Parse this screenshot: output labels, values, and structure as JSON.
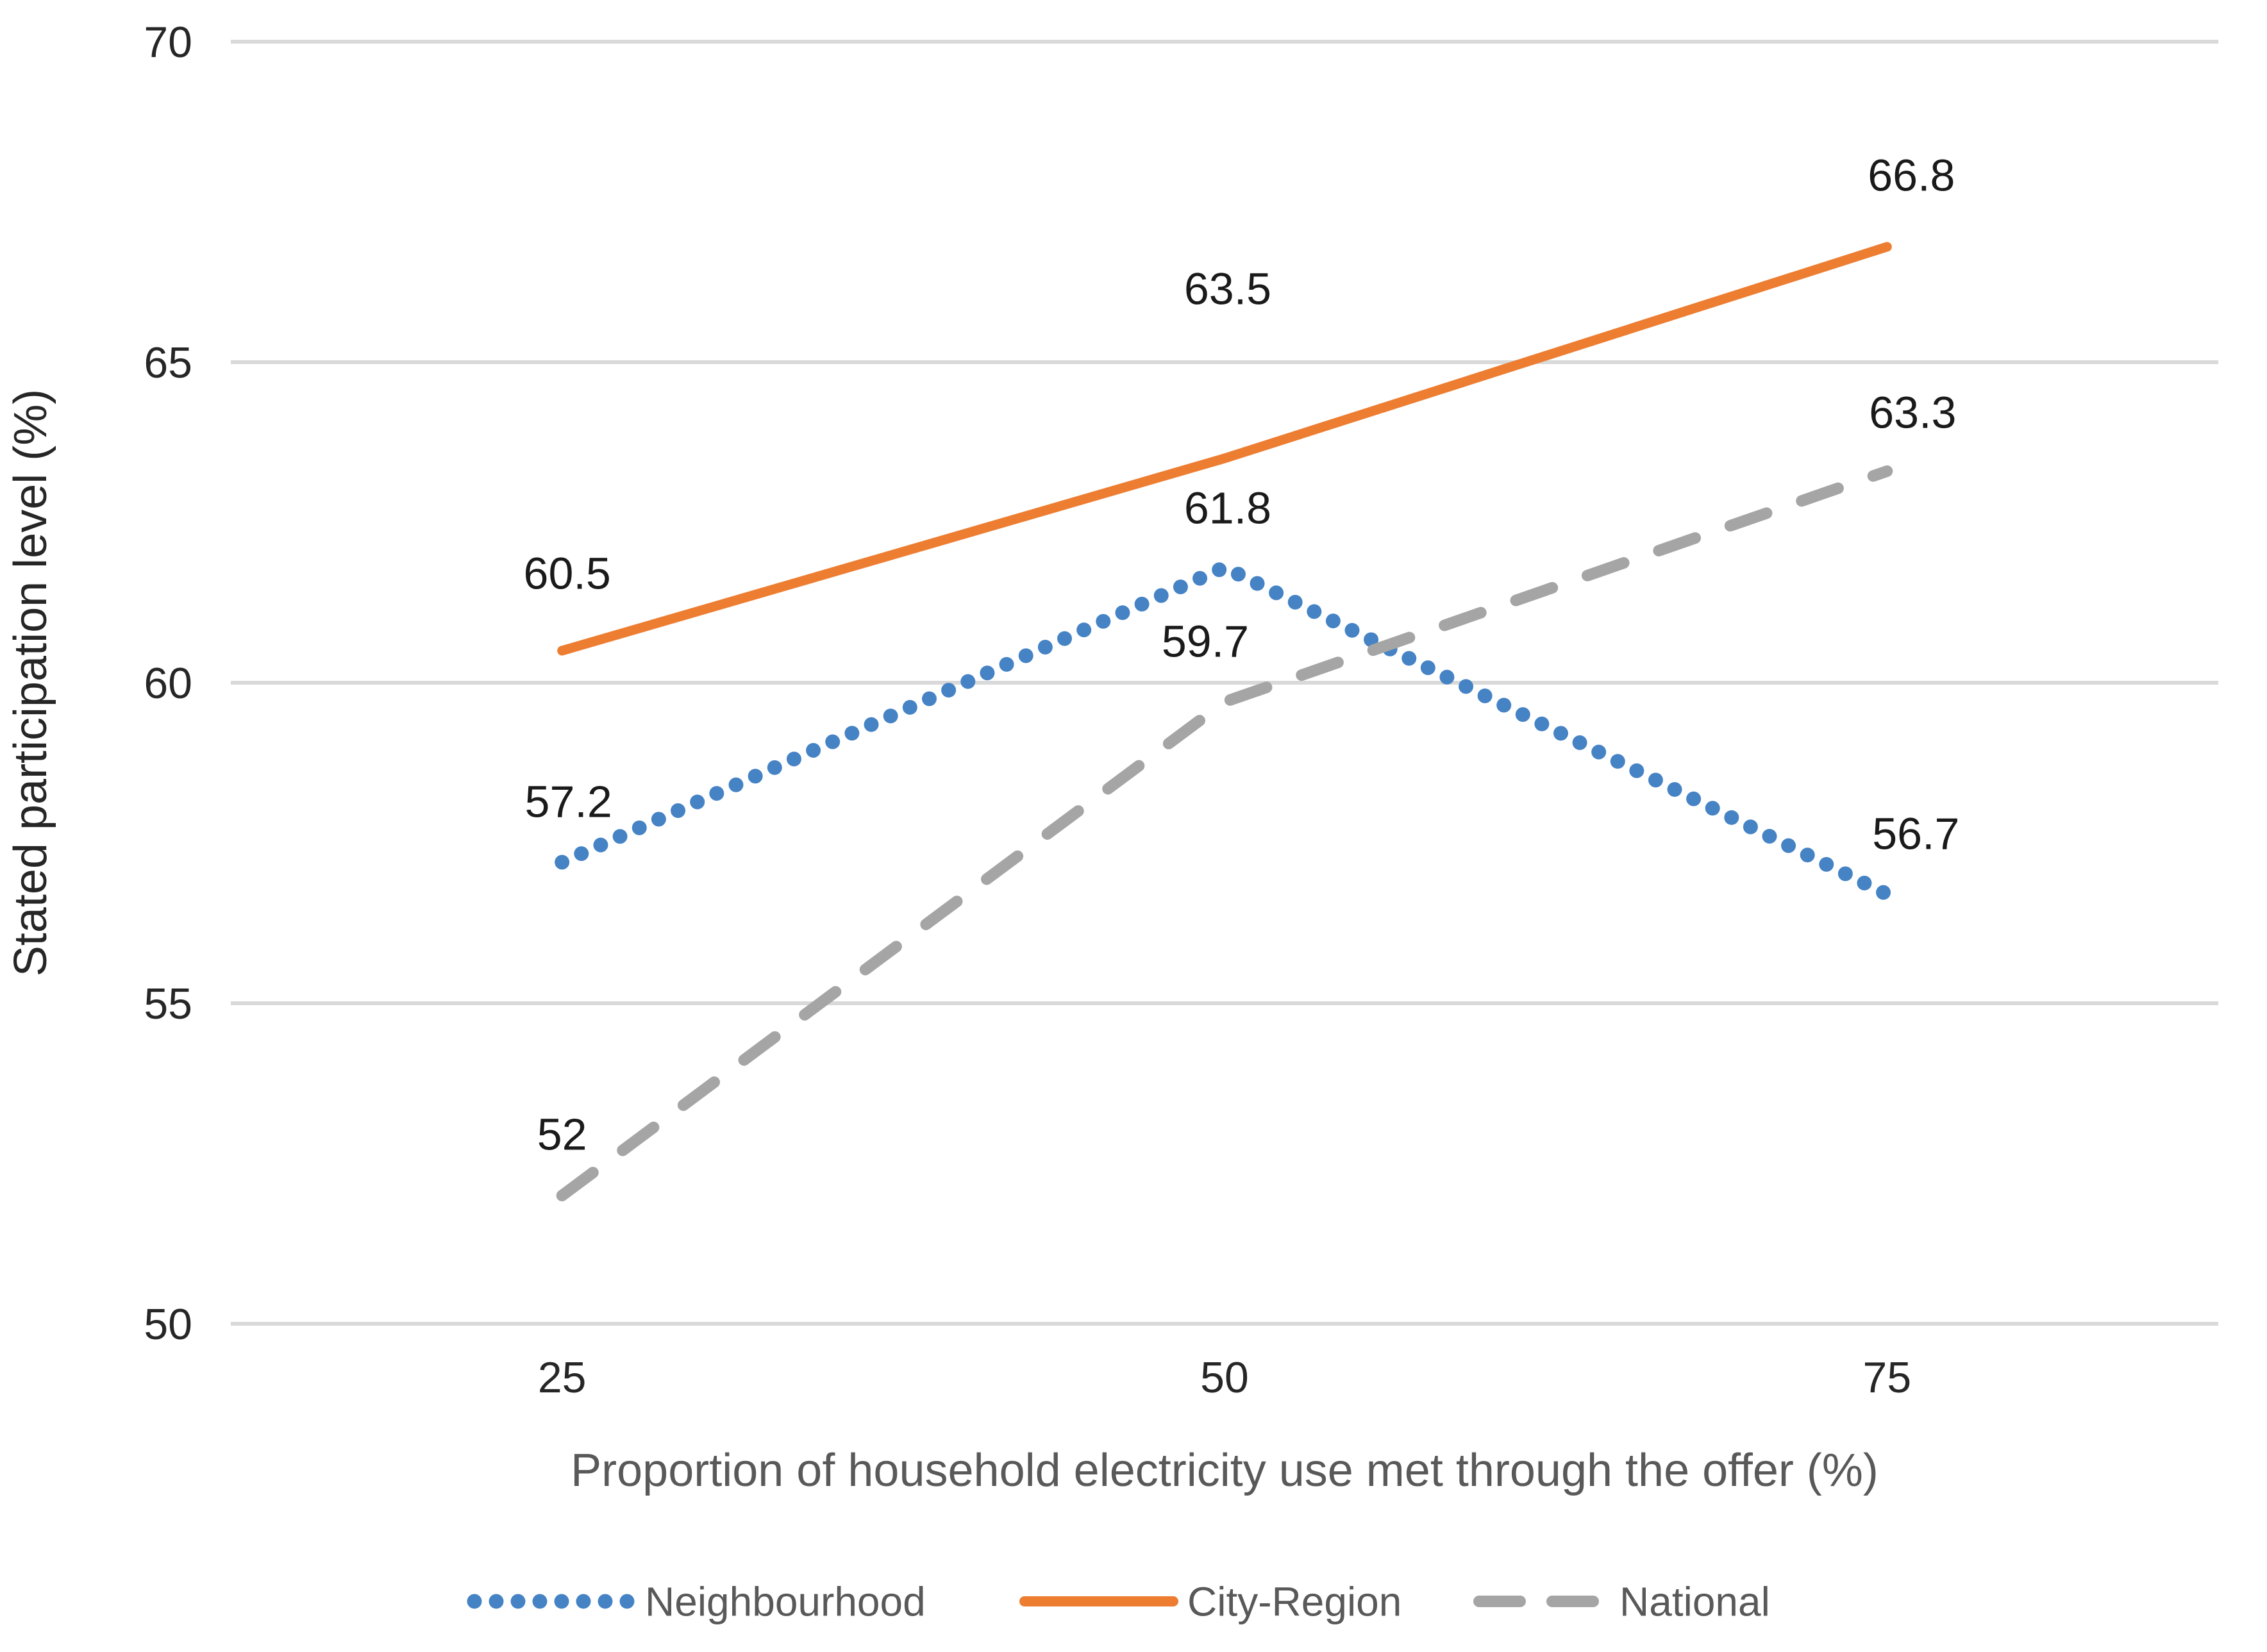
{
  "chart_data": {
    "type": "line",
    "categories": [
      "25",
      "50",
      "75"
    ],
    "series": [
      {
        "name": "Neighbourhood",
        "values": [
          57.2,
          61.8,
          56.7
        ],
        "color": "#4583C5",
        "line_style": "dotted"
      },
      {
        "name": "City-Region",
        "values": [
          60.5,
          63.5,
          66.8
        ],
        "color": "#ED7D31",
        "line_style": "solid"
      },
      {
        "name": "National",
        "values": [
          52,
          59.7,
          63.3
        ],
        "color": "#A5A5A5",
        "line_style": "dashed"
      }
    ],
    "title": "",
    "xlabel": "Proportion of household electricity use met through the offer (%)",
    "ylabel": "Stated participation level (%)",
    "ylim": [
      50,
      70
    ],
    "yticks": [
      70,
      65,
      60,
      55,
      50
    ],
    "grid": "horizontal",
    "legend_position": "bottom",
    "data_labels_shown": true
  },
  "style": {
    "background": "#FFFFFF",
    "gridline_color": "#D9D9D9",
    "tick_label_color": "#262626",
    "data_label_color": "#1A1A1A",
    "x_axis_title_color": "#595959",
    "y_axis_title_color": "#262626",
    "legend_text_color": "#595959"
  }
}
